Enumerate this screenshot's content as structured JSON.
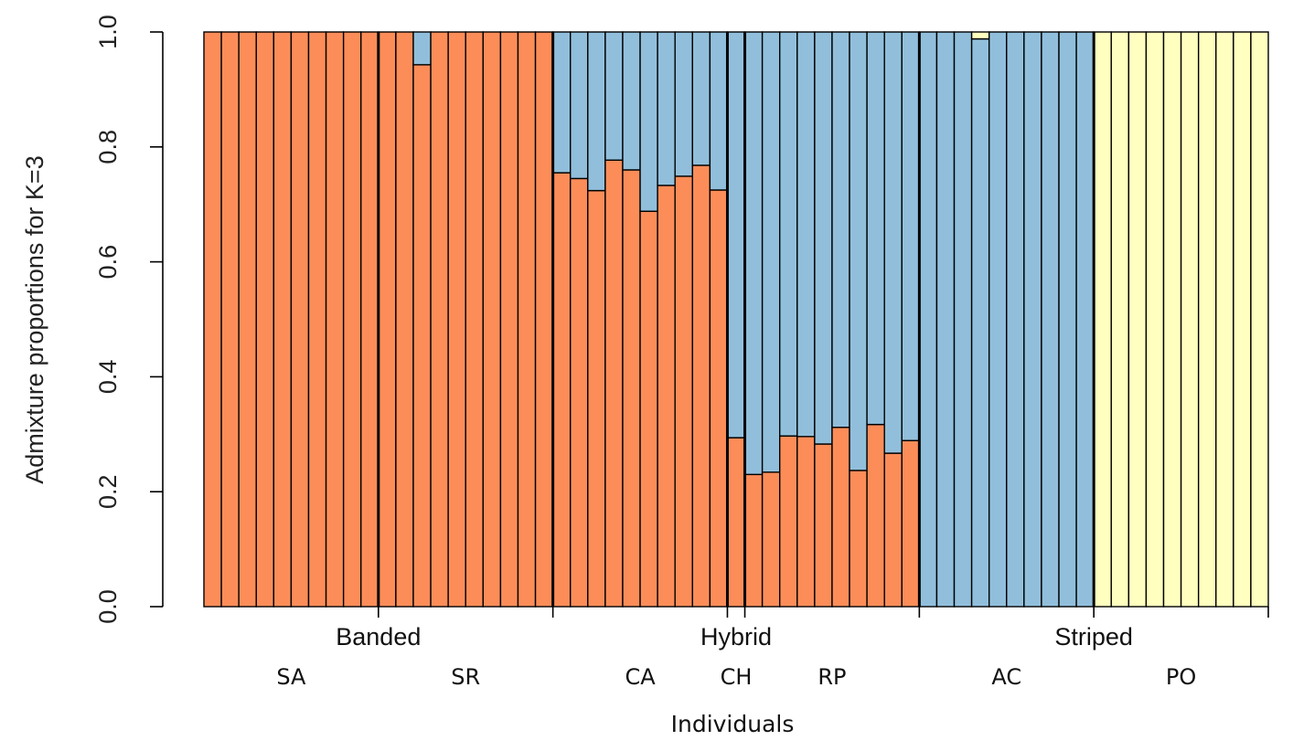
{
  "chart_data": {
    "type": "bar",
    "stacked": true,
    "ylabel": "Admixture proportions for K=3",
    "xlabel": "Individuals",
    "ylim": [
      0,
      1
    ],
    "y_ticks": [
      "0.0",
      "0.2",
      "0.4",
      "0.6",
      "0.8",
      "1.0"
    ],
    "colors": {
      "orange": "#FC8D59",
      "blue": "#91BFDB",
      "yellow": "#FFFFBF",
      "outline": "#000000"
    },
    "groups": [
      {
        "label": "Banded",
        "populations": [
          "SA",
          "SR"
        ]
      },
      {
        "label": "Hybrid",
        "populations": [
          "CA",
          "CH",
          "RP"
        ]
      },
      {
        "label": "Striped",
        "populations": [
          "AC",
          "PO"
        ]
      }
    ],
    "populations": [
      {
        "name": "SA",
        "individuals": 10
      },
      {
        "name": "SR",
        "individuals": 10
      },
      {
        "name": "CA",
        "individuals": 10
      },
      {
        "name": "CH",
        "individuals": 1
      },
      {
        "name": "RP",
        "individuals": 10
      },
      {
        "name": "AC",
        "individuals": 10
      },
      {
        "name": "PO",
        "individuals": 10
      }
    ],
    "series": [
      {
        "color_key": "orange",
        "values": [
          1,
          1,
          1,
          1,
          1,
          1,
          1,
          1,
          1,
          1,
          1,
          1,
          0.943,
          1,
          1,
          1,
          1,
          1,
          1,
          1,
          0.755,
          0.745,
          0.724,
          0.777,
          0.76,
          0.688,
          0.733,
          0.749,
          0.768,
          0.725,
          0.294,
          0.23,
          0.234,
          0.297,
          0.296,
          0.283,
          0.312,
          0.237,
          0.317,
          0.267,
          0.289,
          0,
          0,
          0,
          0,
          0,
          0,
          0,
          0,
          0,
          0,
          0,
          0,
          0,
          0,
          0,
          0,
          0,
          0,
          0,
          0
        ]
      },
      {
        "color_key": "blue",
        "values": [
          0,
          0,
          0,
          0,
          0,
          0,
          0,
          0,
          0,
          0,
          0,
          0,
          0.057,
          0,
          0,
          0,
          0,
          0,
          0,
          0,
          0.245,
          0.255,
          0.276,
          0.223,
          0.24,
          0.312,
          0.267,
          0.251,
          0.232,
          0.275,
          0.706,
          0.77,
          0.766,
          0.703,
          0.704,
          0.717,
          0.688,
          0.763,
          0.683,
          0.733,
          0.711,
          1,
          1,
          1,
          0.988,
          1,
          1,
          1,
          1,
          1,
          1,
          0,
          0,
          0,
          0,
          0,
          0,
          0,
          0,
          0,
          0
        ]
      },
      {
        "color_key": "yellow",
        "values": [
          0,
          0,
          0,
          0,
          0,
          0,
          0,
          0,
          0,
          0,
          0,
          0,
          0,
          0,
          0,
          0,
          0,
          0,
          0,
          0,
          0,
          0,
          0,
          0,
          0,
          0,
          0,
          0,
          0,
          0,
          0,
          0,
          0,
          0,
          0,
          0,
          0,
          0,
          0,
          0,
          0,
          0,
          0,
          0,
          0.012,
          0,
          0,
          0,
          0,
          0,
          0,
          1,
          1,
          1,
          1,
          1,
          1,
          1,
          1,
          1,
          1
        ]
      }
    ]
  }
}
